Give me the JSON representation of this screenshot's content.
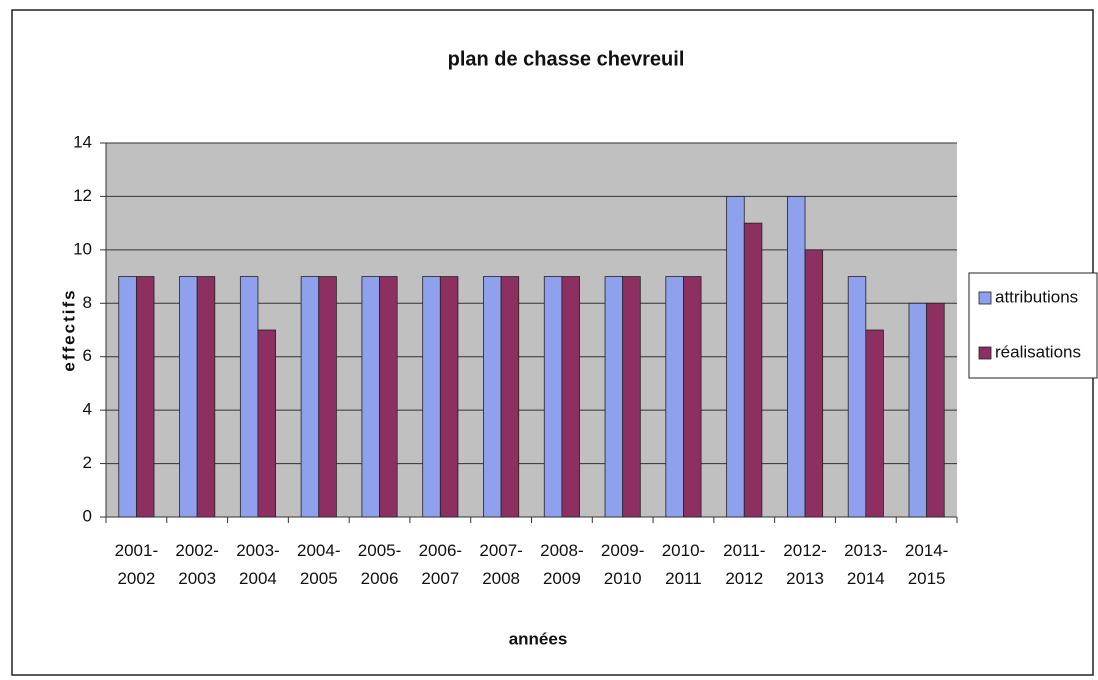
{
  "chart_data": {
    "type": "bar",
    "title": "plan de chasse chevreuil",
    "xlabel": "années",
    "ylabel": "effectifs",
    "categories": [
      "2001-2002",
      "2002-2003",
      "2003-2004",
      "2004-2005",
      "2005-2006",
      "2006-2007",
      "2007-2008",
      "2008-2009",
      "2009-2010",
      "2010-2011",
      "2011-2012",
      "2012-2013",
      "2013-2014",
      "2014-2015"
    ],
    "series": [
      {
        "name": "attributions",
        "color": "#8fa0ec",
        "values": [
          9,
          9,
          9,
          9,
          9,
          9,
          9,
          9,
          9,
          9,
          12,
          12,
          9,
          8
        ]
      },
      {
        "name": "réalisations",
        "color": "#8e2f62",
        "values": [
          9,
          9,
          7,
          9,
          9,
          9,
          9,
          9,
          9,
          9,
          11,
          10,
          7,
          8
        ]
      }
    ],
    "ylim": [
      0,
      14
    ],
    "yticks": [
      0,
      2,
      4,
      6,
      8,
      10,
      12,
      14
    ],
    "grid": true,
    "legend": "right"
  }
}
